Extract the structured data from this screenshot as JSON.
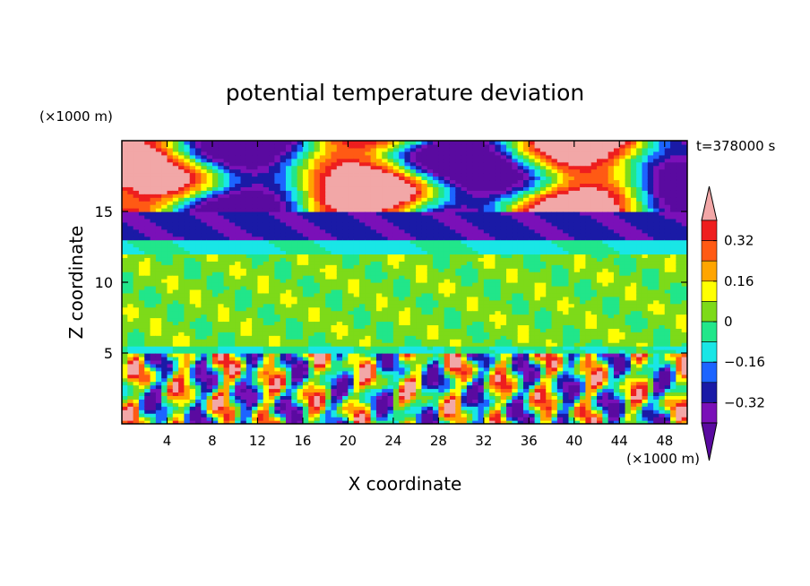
{
  "chart_data": {
    "type": "heatmap",
    "title": "potential temperature deviation",
    "xlabel": "X coordinate",
    "ylabel": "Z coordinate",
    "x_unit": "(×1000 m)",
    "y_unit": "(×1000 m)",
    "time_label": "t=378000 s",
    "xlim": [
      0,
      50
    ],
    "ylim": [
      0,
      20
    ],
    "x_ticks": [
      4,
      8,
      12,
      16,
      20,
      24,
      28,
      32,
      36,
      40,
      44,
      48
    ],
    "y_ticks": [
      5,
      10,
      15
    ],
    "colorbar": {
      "levels": [
        -0.4,
        -0.32,
        -0.24,
        -0.16,
        -0.08,
        0,
        0.08,
        0.16,
        0.24,
        0.32,
        0.4
      ],
      "labeled_values": [
        "0.32",
        "0.16",
        "0",
        "−0.16",
        "−0.32"
      ],
      "colors": [
        "#5a0aa0",
        "#7a10b8",
        "#1a1aa6",
        "#1c64ff",
        "#19e6e6",
        "#21e68a",
        "#7dda19",
        "#ffff00",
        "#ffa500",
        "#ff5a14",
        "#ee1e1e",
        "#f2a7a7"
      ],
      "extend": "both"
    },
    "layers": [
      {
        "z_range": [
          0,
          5
        ],
        "description_values": "strong mixed convection, values from -0.4 to 0.4"
      },
      {
        "z_range": [
          5,
          12
        ],
        "typical_value": 0.04
      },
      {
        "z_range": [
          12,
          13
        ],
        "typical_value": -0.12
      },
      {
        "z_range": [
          13,
          15
        ],
        "typical_value": -0.32
      },
      {
        "z_range": [
          15,
          20
        ],
        "description_values": "alternating below -0.4 and above 0.4"
      }
    ]
  }
}
